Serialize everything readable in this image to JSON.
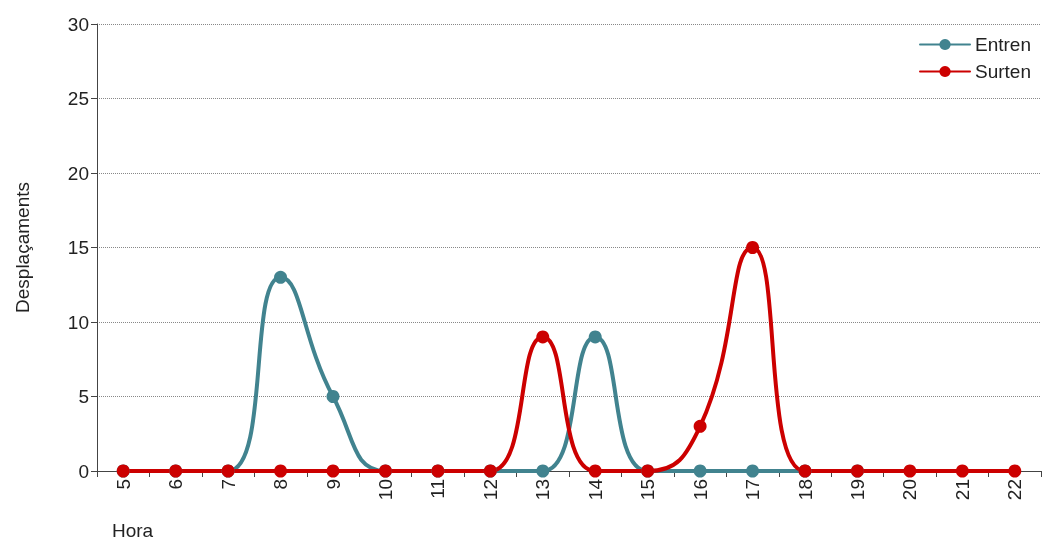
{
  "chart_data": {
    "type": "line",
    "xlabel": "Hora",
    "ylabel": "Desplaçaments",
    "categories": [
      "5",
      "6",
      "7",
      "8",
      "9",
      "10",
      "11",
      "12",
      "13",
      "14",
      "15",
      "16",
      "17",
      "18",
      "19",
      "20",
      "21",
      "22"
    ],
    "series": [
      {
        "name": "Entren",
        "color": "#41838f",
        "values": [
          0,
          0,
          0,
          13,
          5,
          0,
          0,
          0,
          0,
          9,
          0,
          0,
          0,
          0,
          0,
          null,
          null,
          null
        ]
      },
      {
        "name": "Surten",
        "color": "#cc0000",
        "values": [
          0,
          0,
          0,
          0,
          0,
          0,
          0,
          0,
          9,
          0,
          0,
          3,
          15,
          0,
          0,
          0,
          0,
          0
        ]
      }
    ],
    "ylim": [
      0,
      30
    ],
    "yticks": [
      0,
      5,
      10,
      15,
      20,
      25,
      30
    ],
    "grid": "y",
    "legend": "top right",
    "marker": "circle",
    "line_style": "solid"
  }
}
